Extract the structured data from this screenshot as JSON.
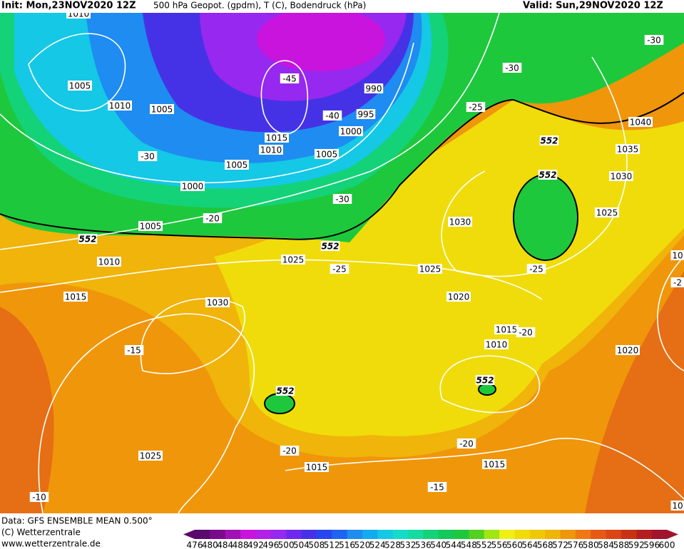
{
  "header": {
    "init": "Init: Mon,23NOV2020 12Z",
    "title": "500 hPa Geopot. (gpdm), T (C), Bodendruck (hPa)",
    "valid": "Valid: Sun,29NOV2020 12Z"
  },
  "footer": {
    "data": "Data: GFS ENSEMBLE MEAN 0.500°",
    "copyright": "(C) Wetterzentrale",
    "url": "www.wetterzentrale.de"
  },
  "color_scale": {
    "labels": [
      476,
      480,
      484,
      488,
      492,
      496,
      500,
      504,
      508,
      512,
      516,
      520,
      524,
      528,
      532,
      536,
      540,
      544,
      548,
      552,
      556,
      560,
      564,
      568,
      572,
      576,
      580,
      584,
      588,
      592,
      596,
      600
    ],
    "colors": [
      "#5a0a6e",
      "#7a0a8c",
      "#a010b4",
      "#c814dc",
      "#b41ee6",
      "#9628f0",
      "#6e28f0",
      "#4632e6",
      "#2846f0",
      "#1e64f0",
      "#1e8cf0",
      "#14aaf0",
      "#14c8e6",
      "#14dcc8",
      "#14dca0",
      "#14d278",
      "#14c85a",
      "#1ec83c",
      "#50d21e",
      "#a0e614",
      "#f0f014",
      "#f0dc0a",
      "#f0c80a",
      "#f0b40a",
      "#f0960a",
      "#f07814",
      "#e65a14",
      "#dc4614",
      "#c83214",
      "#b41e1e",
      "#a0142d"
    ]
  },
  "map_labels": [
    "1010",
    "1005",
    "1010",
    "1005",
    "-45",
    "990",
    "995",
    "-40",
    "1000",
    "1015",
    "1010",
    "1005",
    "1005",
    "1000",
    "-30",
    "-30",
    "-20",
    "1005",
    "552",
    "552",
    "1010",
    "1025",
    "-25",
    "1015",
    "1030",
    "-15",
    "552",
    "1025",
    "-20",
    "1015",
    "-10",
    "-30",
    "-30",
    "-25",
    "552",
    "552",
    "1040",
    "1035",
    "1030",
    "1025",
    "1030",
    "1025",
    "-25",
    "1020",
    "1015",
    "-20",
    "1010",
    "552",
    "1020",
    "-20",
    "1015",
    "-15",
    "10",
    "-2",
    "10"
  ]
}
